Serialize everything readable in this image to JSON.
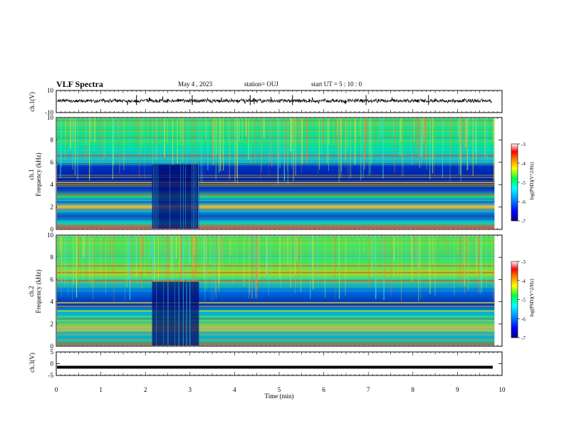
{
  "header": {
    "title": "VLF Spectra",
    "date": "May 4 , 2023",
    "station": "station= OUJ",
    "start": "start UT =  5 : 10 : 0"
  },
  "chart_data": [
    {
      "type": "line",
      "panel": "ch1-waveform",
      "ylabel": "ch.1(V)",
      "ylim": [
        -10,
        10
      ],
      "yticks": [
        "10",
        "-10"
      ],
      "xlim": [
        0,
        10
      ],
      "baseline": 0,
      "grid": true
    },
    {
      "type": "heatmap",
      "panel": "ch1-spectrogram",
      "ylabel_top": "ch.1",
      "ylabel": "Frequency (kHz)",
      "ylim": [
        0,
        10
      ],
      "yticks": [
        "0",
        "2",
        "4",
        "6",
        "8",
        "10"
      ],
      "xlim": [
        0,
        9.83
      ],
      "colorbar": {
        "label": "log(PSD)(V^2/Hz)",
        "range": [
          -7,
          -3
        ],
        "ticks": [
          "-3",
          "-4",
          "-5",
          "-6",
          "-7"
        ]
      },
      "features": {
        "dark_gap_minutes": [
          2.15,
          3.2
        ]
      }
    },
    {
      "type": "heatmap",
      "panel": "ch2-spectrogram",
      "ylabel_top": "ch.2",
      "ylabel": "Frequency (kHz)",
      "ylim": [
        0,
        10
      ],
      "yticks": [
        "0",
        "2",
        "4",
        "6",
        "8",
        "10"
      ],
      "xlim": [
        0,
        9.83
      ],
      "colorbar": {
        "label": "log(PSD)(V^2/Hz)",
        "range": [
          -7,
          -3
        ],
        "ticks": [
          "-3",
          "-4",
          "-5",
          "-6",
          "-7"
        ]
      },
      "features": {
        "dark_gap_minutes": [
          2.15,
          3.2
        ]
      }
    },
    {
      "type": "line",
      "panel": "ch3-waveform",
      "ylabel": "ch.3(V)",
      "ylim": [
        -5,
        5
      ],
      "yticks": [
        "5",
        "0",
        "-5"
      ],
      "xlim": [
        0,
        10
      ],
      "baseline": -1.5,
      "xlabel": "Time (min)",
      "xticks": [
        "0",
        "1",
        "2",
        "3",
        "4",
        "5",
        "6",
        "7",
        "8",
        "9",
        "10"
      ]
    }
  ],
  "colors": {
    "low": "#00007f",
    "high": "#a00000"
  }
}
